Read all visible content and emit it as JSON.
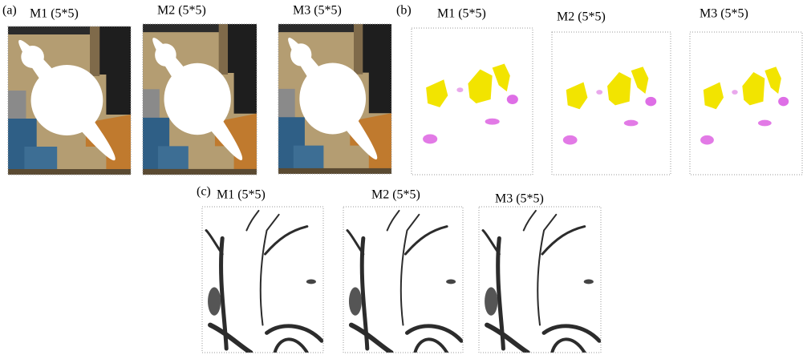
{
  "panels": [
    {
      "label": "(a)",
      "images": [
        {
          "title": "M1 (5*5)"
        },
        {
          "title": "M2 (5*5)"
        },
        {
          "title": "M3 (5*5)"
        }
      ]
    },
    {
      "label": "(b)",
      "images": [
        {
          "title": "M1 (5*5)"
        },
        {
          "title": "M2 (5*5)"
        },
        {
          "title": "M3 (5*5)"
        }
      ]
    },
    {
      "label": "(c)",
      "images": [
        {
          "title": "M1 (5*5)"
        },
        {
          "title": "M2 (5*5)"
        },
        {
          "title": "M3 (5*5)"
        }
      ]
    }
  ]
}
